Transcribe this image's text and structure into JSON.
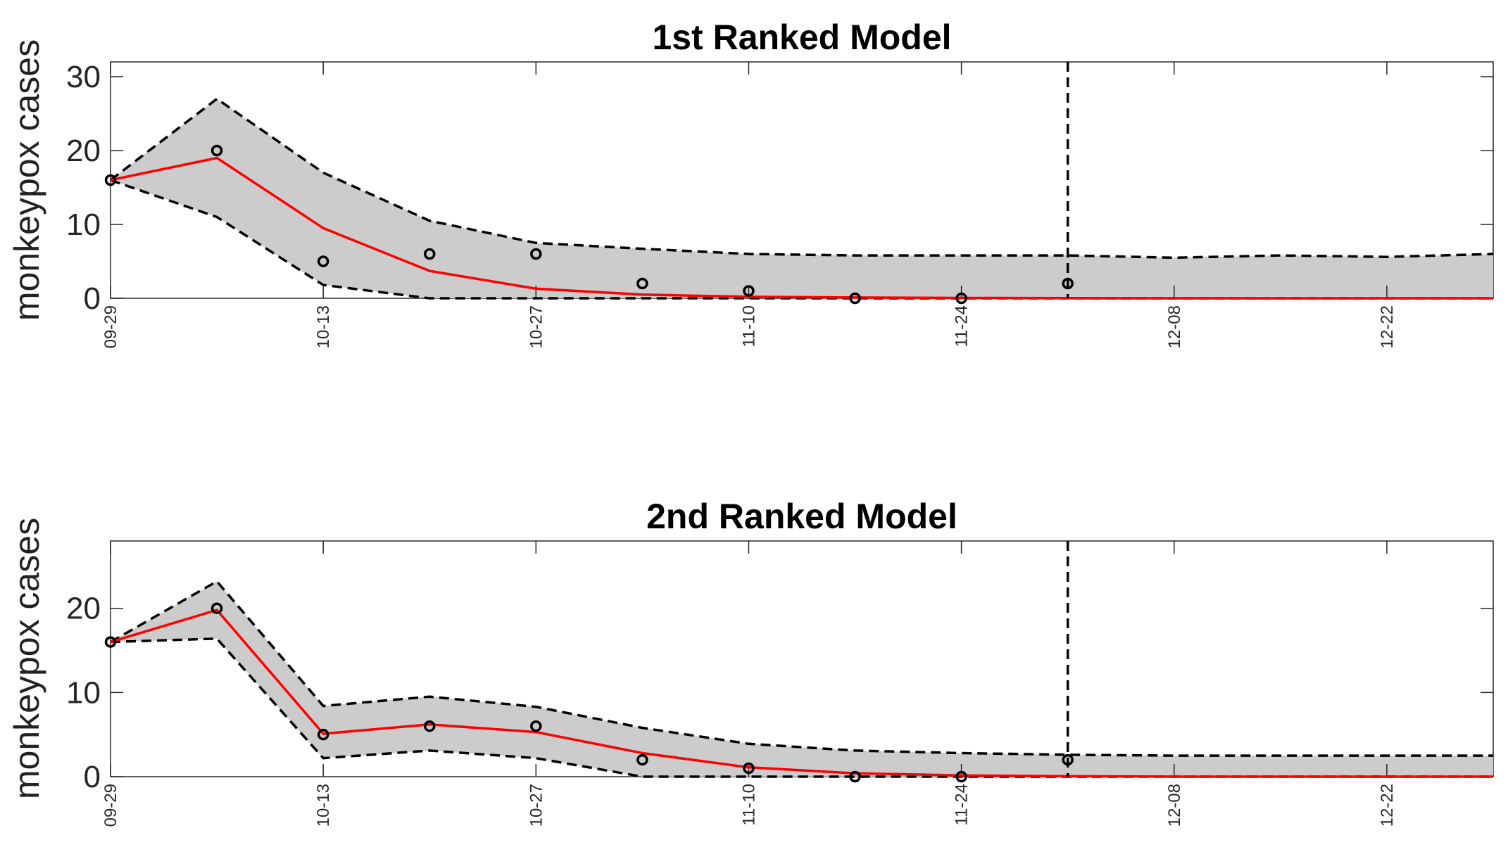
{
  "chart_data": [
    {
      "type": "line",
      "title": "1st Ranked Model",
      "xlabel": "",
      "ylabel": "monkeypox cases",
      "ylim": [
        0,
        32
      ],
      "yticks": [
        0,
        10,
        20,
        30
      ],
      "xlim": [
        0,
        13
      ],
      "xtick_labels": [
        "09-29",
        "10-13",
        "10-27",
        "11-10",
        "11-24",
        "12-08",
        "12-22"
      ],
      "xtick_positions": [
        0,
        2,
        4,
        6,
        8,
        10,
        12
      ],
      "forecast_start": 9,
      "observed": {
        "name": "observed",
        "x": [
          0,
          1,
          2,
          3,
          4,
          5,
          6,
          7,
          8,
          9
        ],
        "y": [
          16,
          20,
          5,
          6,
          6,
          2,
          1,
          0,
          0,
          2
        ]
      },
      "median": {
        "name": "model fit",
        "x": [
          0,
          1,
          2,
          3,
          4,
          5,
          6,
          7,
          8,
          9,
          10,
          11,
          12,
          13
        ],
        "y": [
          16,
          19,
          9.5,
          3.7,
          1.3,
          0.5,
          0.2,
          0.1,
          0.05,
          0.02,
          0,
          0,
          0,
          0
        ]
      },
      "upper": {
        "name": "upper 95% PI",
        "x": [
          0,
          1,
          2,
          3,
          4,
          5,
          6,
          7,
          8,
          9,
          10,
          11,
          12,
          13
        ],
        "y": [
          16,
          27,
          17,
          10.5,
          7.5,
          6.7,
          6,
          5.8,
          5.8,
          5.8,
          5.5,
          5.8,
          5.6,
          6
        ]
      },
      "lower": {
        "name": "lower 95% PI",
        "x": [
          0,
          1,
          2,
          3,
          4,
          5,
          6,
          7,
          8,
          9,
          10,
          11,
          12,
          13
        ],
        "y": [
          16,
          11,
          1.8,
          0,
          0,
          0,
          0,
          0,
          0,
          0,
          0,
          0,
          0,
          0
        ]
      },
      "colors": {
        "band": "#cccccc",
        "median": "#ff0000",
        "bound": "#000000",
        "observed": "#000000"
      }
    },
    {
      "type": "line",
      "title": "2nd Ranked Model",
      "xlabel": "",
      "ylabel": "monkeypox cases",
      "ylim": [
        0,
        28
      ],
      "yticks": [
        0,
        10,
        20
      ],
      "xlim": [
        0,
        13
      ],
      "xtick_labels": [
        "09-29",
        "10-13",
        "10-27",
        "11-10",
        "11-24",
        "12-08",
        "12-22"
      ],
      "xtick_positions": [
        0,
        2,
        4,
        6,
        8,
        10,
        12
      ],
      "forecast_start": 9,
      "observed": {
        "name": "observed",
        "x": [
          0,
          1,
          2,
          3,
          4,
          5,
          6,
          7,
          8,
          9
        ],
        "y": [
          16,
          20,
          5,
          6,
          6,
          2,
          1,
          0,
          0,
          2
        ]
      },
      "median": {
        "name": "model fit",
        "x": [
          0,
          1,
          2,
          3,
          4,
          5,
          6,
          7,
          8,
          9,
          10,
          11,
          12,
          13
        ],
        "y": [
          16,
          19.8,
          5.1,
          6.2,
          5.3,
          2.8,
          1.1,
          0.4,
          0.15,
          0.05,
          0,
          0,
          0,
          0
        ]
      },
      "upper": {
        "name": "upper 95% PI",
        "x": [
          0,
          1,
          2,
          3,
          4,
          5,
          6,
          7,
          8,
          9,
          10,
          11,
          12,
          13
        ],
        "y": [
          16,
          23.2,
          8.4,
          9.5,
          8.3,
          5.8,
          3.9,
          3.1,
          2.8,
          2.6,
          2.5,
          2.5,
          2.5,
          2.5
        ]
      },
      "lower": {
        "name": "lower 95% PI",
        "x": [
          0,
          1,
          2,
          3,
          4,
          5,
          6,
          7,
          8,
          9,
          10,
          11,
          12,
          13
        ],
        "y": [
          16,
          16.4,
          2.2,
          3.1,
          2.2,
          0,
          0,
          0,
          0,
          0,
          0,
          0,
          0,
          0
        ]
      },
      "colors": {
        "band": "#cccccc",
        "median": "#ff0000",
        "bound": "#000000",
        "observed": "#000000"
      }
    }
  ]
}
